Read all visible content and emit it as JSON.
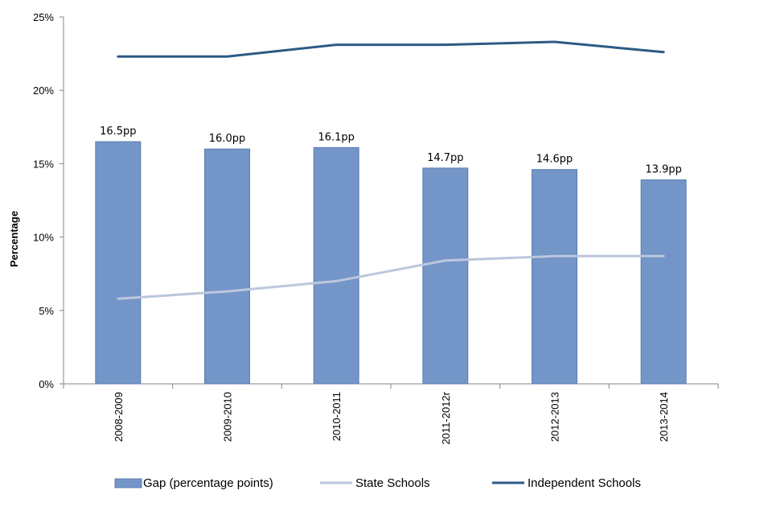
{
  "chart_data": {
    "type": "bar",
    "title": "",
    "xlabel": "",
    "ylabel": "Percentage",
    "ylim": [
      0,
      25
    ],
    "yticks": [
      0,
      5,
      10,
      15,
      20,
      25
    ],
    "ytick_labels": [
      "0%",
      "5%",
      "10%",
      "15%",
      "20%",
      "25%"
    ],
    "grid": false,
    "legend_position": "bottom",
    "categories": [
      "2008-2009",
      "2009-2010",
      "2010-2011",
      "2011-2012r",
      "2012-2013",
      "2013-2014"
    ],
    "series": [
      {
        "name": "Gap (percentage points)",
        "kind": "bar",
        "color": "#7395c7",
        "values": [
          16.5,
          16.0,
          16.1,
          14.7,
          14.6,
          13.9
        ],
        "labels": [
          "16.5pp",
          "16.0pp",
          "16.1pp",
          "14.7pp",
          "14.6pp",
          "13.9pp"
        ]
      },
      {
        "name": "State Schools",
        "kind": "line",
        "color": "#bcc7dc",
        "values": [
          5.8,
          6.3,
          7.0,
          8.4,
          8.7,
          8.7
        ]
      },
      {
        "name": "Independent Schools",
        "kind": "line",
        "color": "#2e5a85",
        "values": [
          22.3,
          22.3,
          23.1,
          23.1,
          23.3,
          22.6
        ]
      }
    ]
  }
}
